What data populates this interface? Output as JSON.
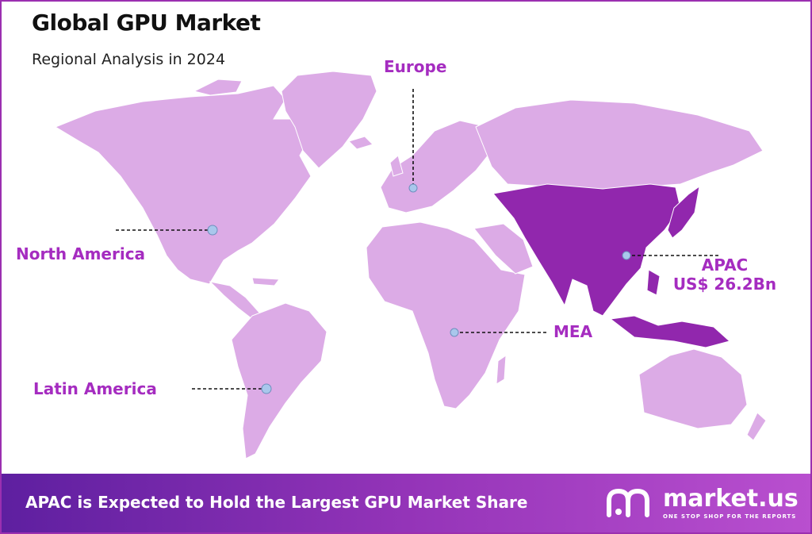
{
  "title": "Global GPU Market",
  "subtitle": "Regional Analysis in 2024",
  "regions": {
    "north_america": "North America",
    "europe": "Europe",
    "apac_name": "APAC",
    "apac_value": "US$ 26.2Bn",
    "mea": "MEA",
    "latin_america": "Latin America"
  },
  "highlighted_region": "APAC",
  "colors": {
    "land": "#dcabe6",
    "highlight": "#9127ad",
    "label": "#a52cc0",
    "marker": "#a9c7ec",
    "footer_start": "#5e1fa0",
    "footer_end": "#b94fcf"
  },
  "footer": {
    "text": "APAC is Expected to Hold the Largest GPU Market Share",
    "brand": "market.us",
    "tagline": "ONE STOP SHOP FOR THE REPORTS"
  }
}
